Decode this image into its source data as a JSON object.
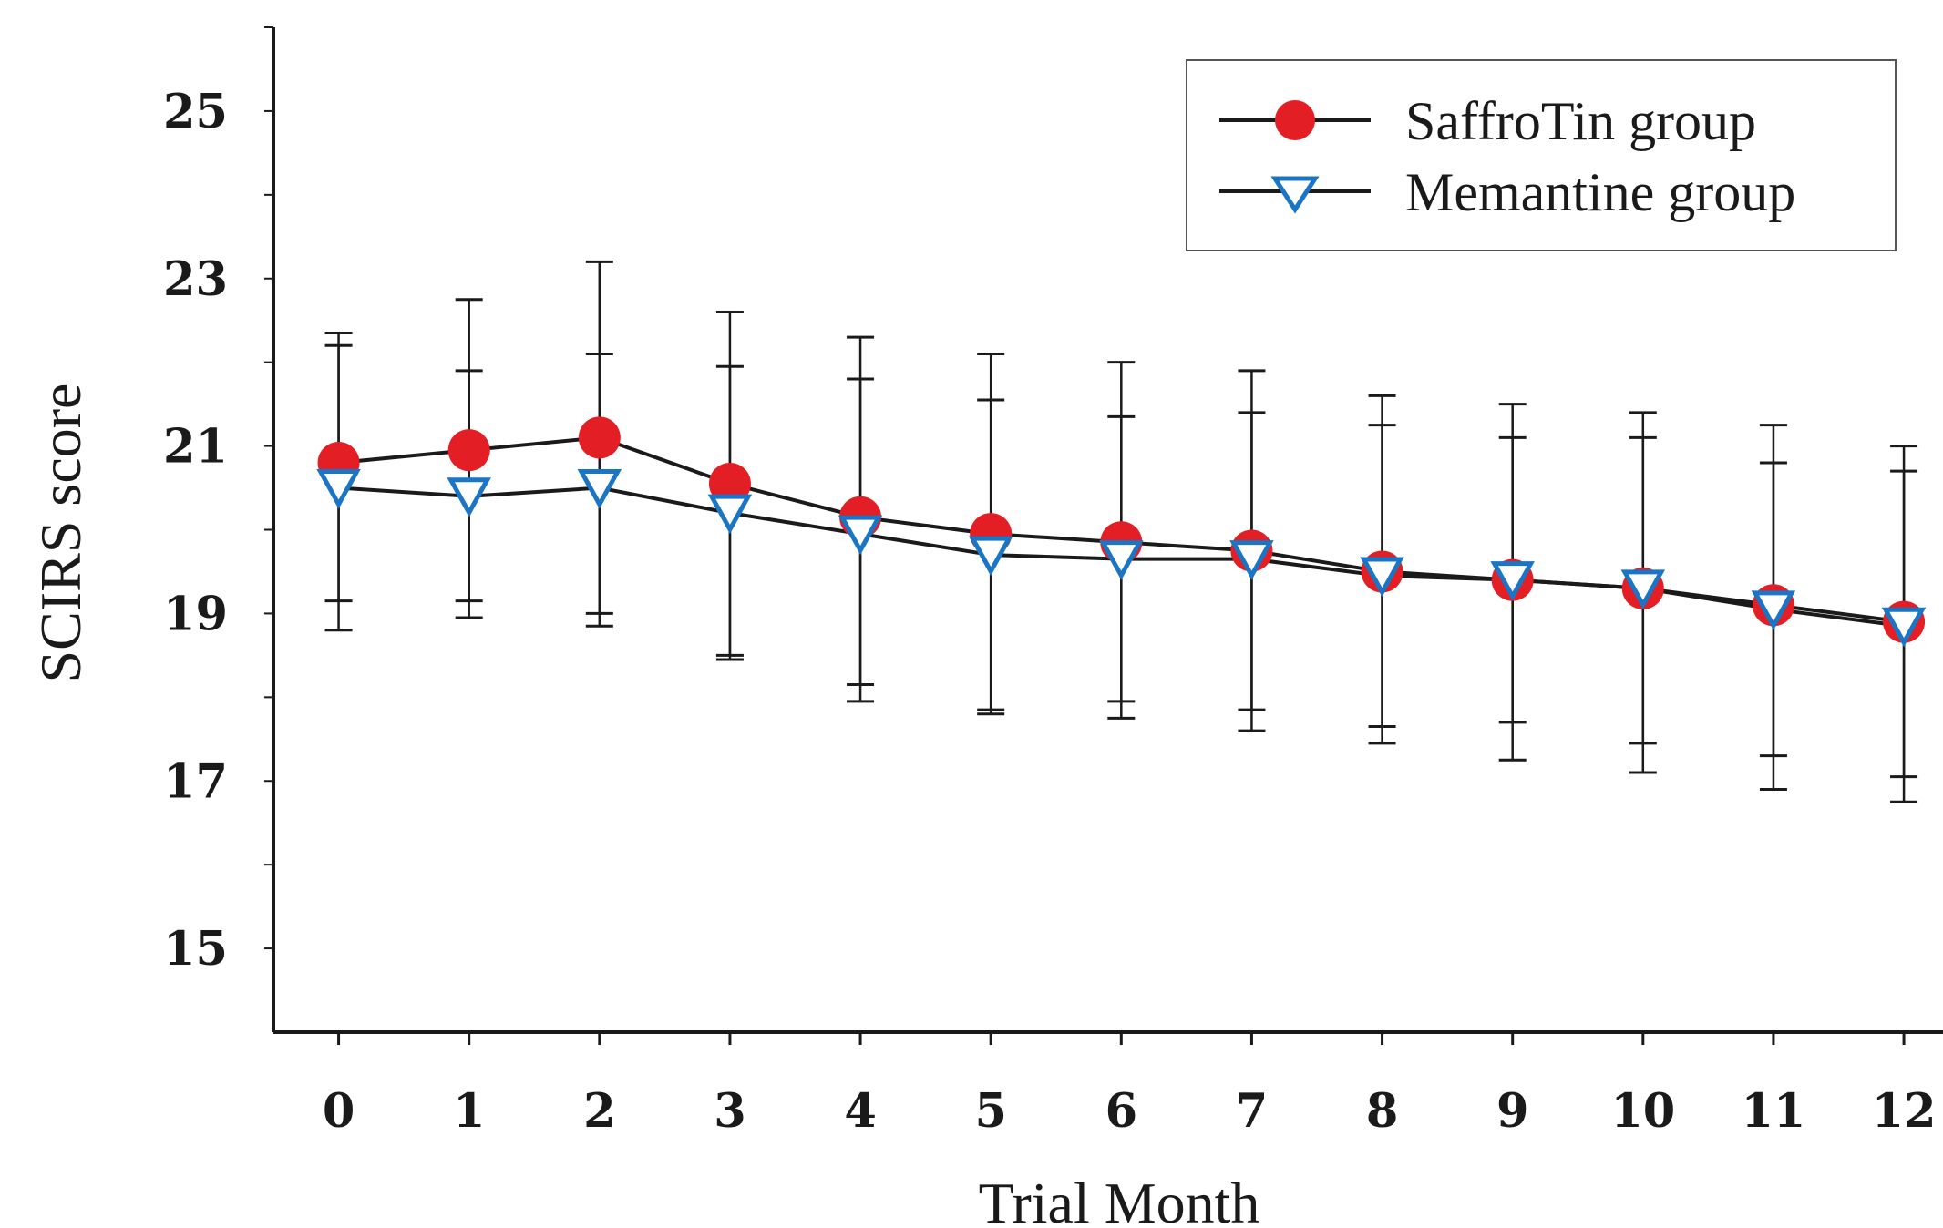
{
  "chart_data": {
    "type": "line",
    "title": "",
    "xlabel": "Trial Month",
    "ylabel": "SCIRS score",
    "x": [
      0,
      1,
      2,
      3,
      4,
      5,
      6,
      7,
      8,
      9,
      10,
      11,
      12
    ],
    "x_tick_labels": [
      "0",
      "1",
      "2",
      "3",
      "4",
      "5",
      "6",
      "7",
      "8",
      "9",
      "10",
      "11",
      "12"
    ],
    "y_ticks": [
      15,
      17,
      19,
      21,
      23,
      25
    ],
    "y_tick_labels": [
      "15",
      "17",
      "19",
      "21",
      "23",
      "25"
    ],
    "ylim": [
      14,
      26
    ],
    "xlim": [
      -0.5,
      12.3
    ],
    "grid": false,
    "legend": {
      "position": "top-right",
      "entries": [
        "SaffroTin group",
        "Memantine group"
      ]
    },
    "series": [
      {
        "name": "SaffroTin group",
        "marker": "circle",
        "color": "#e31e24",
        "line_color": "#1a1a1a",
        "values": [
          20.8,
          20.95,
          21.1,
          20.55,
          20.15,
          19.95,
          19.85,
          19.75,
          19.5,
          19.4,
          19.3,
          19.1,
          18.9
        ],
        "err_upper": [
          22.35,
          22.75,
          23.2,
          22.6,
          22.3,
          22.1,
          22.0,
          21.9,
          21.6,
          21.5,
          21.4,
          21.25,
          21.0
        ],
        "err_lower": [
          19.15,
          19.15,
          19.0,
          18.5,
          18.15,
          17.85,
          17.95,
          17.85,
          17.65,
          17.7,
          17.45,
          17.3,
          17.05
        ]
      },
      {
        "name": "Memantine group",
        "marker": "triangle-down",
        "color": "#1a75c4",
        "line_color": "#1a1a1a",
        "values": [
          20.5,
          20.4,
          20.5,
          20.2,
          19.95,
          19.7,
          19.65,
          19.65,
          19.45,
          19.4,
          19.3,
          19.05,
          18.85
        ],
        "err_upper": [
          22.2,
          21.9,
          22.1,
          21.95,
          21.8,
          21.55,
          21.35,
          21.4,
          21.25,
          21.1,
          21.1,
          20.8,
          20.7
        ],
        "err_lower": [
          18.8,
          18.95,
          18.85,
          18.45,
          17.95,
          17.8,
          17.75,
          17.6,
          17.45,
          17.25,
          17.1,
          16.9,
          16.75
        ]
      }
    ]
  }
}
